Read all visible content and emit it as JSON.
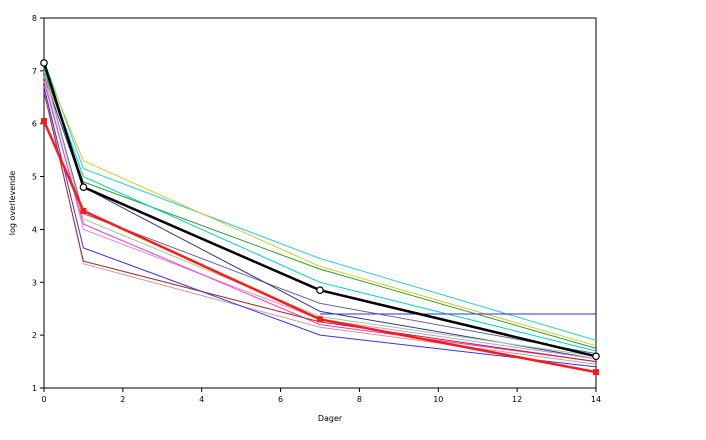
{
  "chart_data": {
    "type": "line",
    "title": "",
    "xlabel": "Dager",
    "ylabel": "log overlevende",
    "xlim": [
      0,
      14
    ],
    "ylim": [
      1,
      8
    ],
    "xticks": [
      0,
      2,
      4,
      6,
      8,
      10,
      12,
      14
    ],
    "yticks": [
      1,
      2,
      3,
      4,
      5,
      6,
      7,
      8
    ],
    "grid": false,
    "legend": "none",
    "series": [
      {
        "color": "#33cccc",
        "width": 1,
        "x": [
          0,
          1,
          7,
          14
        ],
        "y": [
          7.2,
          5.15,
          3.45,
          1.9
        ]
      },
      {
        "color": "#cccc33",
        "width": 1,
        "x": [
          0,
          1,
          7,
          14
        ],
        "y": [
          7.1,
          5.3,
          3.3,
          1.8
        ]
      },
      {
        "color": "#339933",
        "width": 1,
        "x": [
          0,
          1,
          7,
          14
        ],
        "y": [
          7.0,
          4.9,
          3.25,
          1.75
        ]
      },
      {
        "color": "#00cccc",
        "width": 1,
        "x": [
          0,
          1,
          7,
          14
        ],
        "y": [
          7.05,
          5.0,
          3.0,
          1.7
        ]
      },
      {
        "color": "#666699",
        "width": 1,
        "x": [
          0,
          1,
          7,
          14
        ],
        "y": [
          7.0,
          4.3,
          2.6,
          1.65
        ]
      },
      {
        "color": "#333399",
        "width": 1,
        "x": [
          0,
          1,
          7,
          14
        ],
        "y": [
          6.9,
          4.8,
          2.45,
          1.55
        ]
      },
      {
        "color": "#3333cc",
        "width": 1,
        "x": [
          7,
          14
        ],
        "y": [
          2.4,
          2.4
        ]
      },
      {
        "color": "#99cc99",
        "width": 1,
        "x": [
          0,
          1,
          7,
          14
        ],
        "y": [
          7.0,
          4.2,
          2.35,
          1.6
        ]
      },
      {
        "color": "#cc99cc",
        "width": 1,
        "x": [
          0,
          1,
          7,
          14
        ],
        "y": [
          6.9,
          4.0,
          2.3,
          1.55
        ]
      },
      {
        "color": "#ff33cc",
        "width": 1,
        "x": [
          0,
          1,
          7,
          14
        ],
        "y": [
          6.8,
          4.1,
          2.2,
          1.5
        ]
      },
      {
        "color": "#cc9999",
        "width": 1,
        "x": [
          0,
          1,
          7,
          14
        ],
        "y": [
          6.7,
          3.35,
          2.15,
          1.45
        ]
      },
      {
        "color": "#993333",
        "width": 1,
        "x": [
          0,
          1,
          7,
          14
        ],
        "y": [
          6.6,
          3.4,
          2.25,
          1.5
        ]
      },
      {
        "color": "#3333ff",
        "width": 1,
        "x": [
          0,
          1,
          7,
          14
        ],
        "y": [
          6.7,
          3.65,
          2.0,
          1.4
        ]
      },
      {
        "color": "#000000",
        "width": 2.5,
        "marker": "open-circle",
        "x": [
          0,
          1,
          7,
          14
        ],
        "y": [
          7.15,
          4.8,
          2.85,
          1.6
        ]
      },
      {
        "color": "#ff1a1a",
        "width": 2.5,
        "marker": "filled-square",
        "x": [
          0,
          1,
          7,
          14
        ],
        "y": [
          6.05,
          4.35,
          2.3,
          1.3
        ]
      }
    ]
  }
}
